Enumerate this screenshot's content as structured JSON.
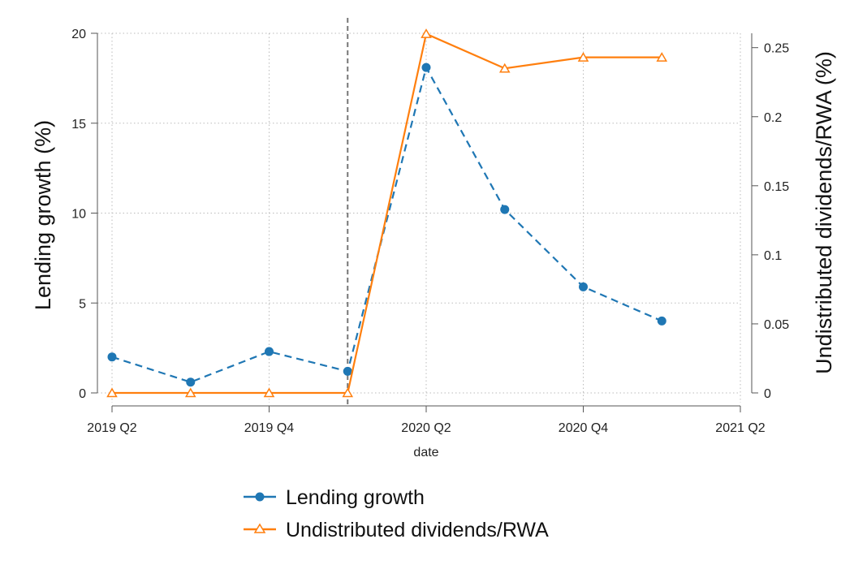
{
  "chart_data": {
    "type": "line",
    "xlabel": "date",
    "ylabel_left": "Lending growth (%)",
    "ylabel_right": "Undistributed dividends/RWA (%)",
    "x_ticks": [
      "2019 Q2",
      "2019 Q4",
      "2020 Q2",
      "2020 Q4",
      "2021 Q2"
    ],
    "x_tick_index": [
      0,
      2,
      4,
      6,
      8
    ],
    "xlim_index": [
      0,
      8
    ],
    "ylim_left": [
      0,
      20
    ],
    "ylim_right": [
      0,
      0.2604
    ],
    "yticks_left": [
      "0",
      "5",
      "10",
      "15",
      "20"
    ],
    "yticks_left_values": [
      0,
      5,
      10,
      15,
      20
    ],
    "yticks_right": [
      "0",
      "0.05",
      "0.1",
      "0.15",
      "0.2",
      "0.25"
    ],
    "yticks_right_values": [
      0,
      0.05,
      0.1,
      0.15,
      0.2,
      0.25
    ],
    "vline_index": 3,
    "grid": true,
    "x": [
      "2019 Q2",
      "2019 Q3",
      "2019 Q4",
      "2020 Q1",
      "2020 Q2",
      "2020 Q3",
      "2020 Q4",
      "2021 Q1"
    ],
    "series": [
      {
        "name": "Lending growth",
        "axis": "left",
        "style": "dashed-circle",
        "color": "#1f77b4",
        "values": [
          2.0,
          0.6,
          2.3,
          1.2,
          18.1,
          10.2,
          5.9,
          4.0
        ]
      },
      {
        "name": "Undistributed dividends/RWA",
        "axis": "right",
        "style": "solid-triangle",
        "color": "#ff7f0e",
        "values": [
          0,
          0,
          0,
          0,
          0.26,
          0.235,
          0.243,
          0.243
        ]
      }
    ],
    "legend": {
      "position": "bottom-center",
      "entries": [
        "Lending growth",
        "Undistributed dividends/RWA"
      ]
    }
  }
}
